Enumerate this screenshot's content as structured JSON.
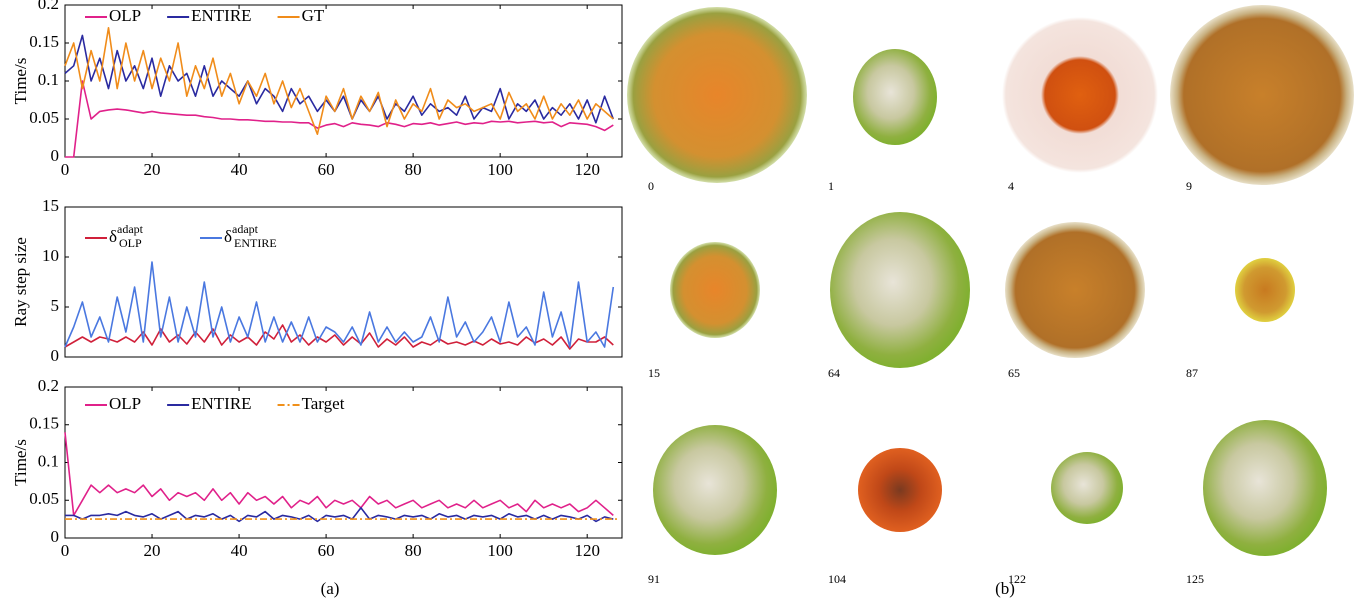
{
  "chart_data": [
    {
      "type": "line",
      "ylabel": "Time/s",
      "xlim": [
        0,
        128
      ],
      "ylim": [
        0,
        0.2
      ],
      "xticks": [
        0,
        20,
        40,
        60,
        80,
        100,
        120
      ],
      "yticks": [
        0,
        0.05,
        0.1,
        0.15,
        0.2
      ],
      "show_xtick_labels": true,
      "x": [
        0,
        2,
        4,
        6,
        8,
        10,
        12,
        14,
        16,
        18,
        20,
        22,
        24,
        26,
        28,
        30,
        32,
        34,
        36,
        38,
        40,
        42,
        44,
        46,
        48,
        50,
        52,
        54,
        56,
        58,
        60,
        62,
        64,
        66,
        68,
        70,
        72,
        74,
        76,
        78,
        80,
        82,
        84,
        86,
        88,
        90,
        92,
        94,
        96,
        98,
        100,
        102,
        104,
        106,
        108,
        110,
        112,
        114,
        116,
        118,
        120,
        122,
        124,
        126
      ],
      "series": [
        {
          "name": "OLP",
          "color": "#e0218a",
          "values": [
            0,
            0,
            0.1,
            0.05,
            0.06,
            0.062,
            0.063,
            0.062,
            0.06,
            0.058,
            0.06,
            0.058,
            0.057,
            0.056,
            0.055,
            0.055,
            0.053,
            0.052,
            0.05,
            0.05,
            0.049,
            0.049,
            0.048,
            0.047,
            0.047,
            0.046,
            0.046,
            0.045,
            0.045,
            0.038,
            0.042,
            0.044,
            0.04,
            0.045,
            0.043,
            0.042,
            0.04,
            0.045,
            0.043,
            0.04,
            0.044,
            0.043,
            0.045,
            0.042,
            0.044,
            0.046,
            0.043,
            0.045,
            0.044,
            0.047,
            0.046,
            0.047,
            0.045,
            0.046,
            0.047,
            0.045,
            0.046,
            0.04,
            0.045,
            0.044,
            0.043,
            0.04,
            0.035,
            0.042
          ]
        },
        {
          "name": "ENTIRE",
          "color": "#2a2aa0",
          "values": [
            0.11,
            0.12,
            0.16,
            0.1,
            0.13,
            0.09,
            0.14,
            0.1,
            0.12,
            0.09,
            0.13,
            0.08,
            0.12,
            0.1,
            0.11,
            0.08,
            0.12,
            0.08,
            0.1,
            0.09,
            0.08,
            0.1,
            0.07,
            0.09,
            0.08,
            0.06,
            0.09,
            0.07,
            0.08,
            0.06,
            0.075,
            0.06,
            0.08,
            0.05,
            0.075,
            0.06,
            0.08,
            0.05,
            0.07,
            0.06,
            0.08,
            0.055,
            0.07,
            0.06,
            0.065,
            0.055,
            0.08,
            0.05,
            0.065,
            0.06,
            0.09,
            0.05,
            0.07,
            0.06,
            0.075,
            0.05,
            0.065,
            0.055,
            0.07,
            0.05,
            0.075,
            0.045,
            0.08,
            0.05
          ]
        },
        {
          "name": "GT",
          "color": "#f08c1a",
          "values": [
            0.12,
            0.15,
            0.09,
            0.14,
            0.1,
            0.17,
            0.09,
            0.15,
            0.1,
            0.14,
            0.09,
            0.13,
            0.1,
            0.15,
            0.08,
            0.12,
            0.09,
            0.13,
            0.08,
            0.11,
            0.07,
            0.1,
            0.08,
            0.11,
            0.07,
            0.1,
            0.065,
            0.09,
            0.06,
            0.03,
            0.08,
            0.06,
            0.09,
            0.05,
            0.08,
            0.06,
            0.085,
            0.04,
            0.075,
            0.05,
            0.07,
            0.06,
            0.09,
            0.05,
            0.075,
            0.065,
            0.07,
            0.06,
            0.065,
            0.07,
            0.05,
            0.085,
            0.06,
            0.07,
            0.05,
            0.08,
            0.05,
            0.07,
            0.055,
            0.075,
            0.05,
            0.07,
            0.06,
            0.05
          ]
        }
      ]
    },
    {
      "type": "line",
      "ylabel": "Ray step size",
      "xlim": [
        0,
        128
      ],
      "ylim": [
        0,
        15
      ],
      "yticks": [
        0,
        5,
        10,
        15
      ],
      "show_xtick_labels": false,
      "x": [
        0,
        2,
        4,
        6,
        8,
        10,
        12,
        14,
        16,
        18,
        20,
        22,
        24,
        26,
        28,
        30,
        32,
        34,
        36,
        38,
        40,
        42,
        44,
        46,
        48,
        50,
        52,
        54,
        56,
        58,
        60,
        62,
        64,
        66,
        68,
        70,
        72,
        74,
        76,
        78,
        80,
        82,
        84,
        86,
        88,
        90,
        92,
        94,
        96,
        98,
        100,
        102,
        104,
        106,
        108,
        110,
        112,
        114,
        116,
        118,
        120,
        122,
        124,
        126
      ],
      "series": [
        {
          "name": "δ",
          "subscript": "OLP",
          "superscript": "adapt",
          "color": "#d0203a",
          "values": [
            1,
            1.5,
            2,
            1.5,
            2,
            1.8,
            1.5,
            2,
            1.5,
            2.5,
            1.2,
            2.8,
            1.5,
            2.2,
            1.3,
            2.5,
            1.5,
            2.8,
            1.2,
            2.2,
            1.5,
            2,
            1.2,
            2.5,
            1.8,
            3.2,
            1.5,
            2.2,
            1.2,
            2,
            1.5,
            2.2,
            1.2,
            2,
            1.3,
            2.4,
            1,
            1.8,
            1.2,
            2,
            1,
            1.5,
            1.2,
            1.8,
            1.3,
            1.5,
            1.2,
            1.6,
            1.2,
            1.8,
            1.3,
            1.5,
            1.2,
            2,
            1.4,
            1.8,
            1.2,
            2,
            0.8,
            1.8,
            1.5,
            1.5,
            2,
            1.2
          ]
        },
        {
          "name": "δ",
          "subscript": "ENTIRE",
          "superscript": "adapt",
          "color": "#4a78e0",
          "values": [
            1,
            3,
            5.5,
            2,
            4,
            1.5,
            6,
            2.5,
            7,
            1.5,
            9.5,
            2,
            6,
            1.5,
            5,
            2,
            7.5,
            2,
            5,
            1.5,
            4,
            2,
            5.5,
            1.5,
            4,
            1.5,
            3.5,
            1.5,
            4,
            1.5,
            3,
            2.5,
            1.5,
            3,
            1.2,
            4.5,
            1.5,
            3,
            1.5,
            2.5,
            1.5,
            2,
            4,
            1.5,
            6,
            2,
            3.5,
            1.5,
            2.5,
            4,
            1.5,
            5.5,
            2,
            3,
            1.2,
            6.5,
            2,
            4.5,
            1,
            7.5,
            1.5,
            2.5,
            1,
            7
          ]
        }
      ]
    },
    {
      "type": "line",
      "ylabel": "Time/s",
      "xlim": [
        0,
        128
      ],
      "ylim": [
        0,
        0.2
      ],
      "xticks": [
        0,
        20,
        40,
        60,
        80,
        100,
        120
      ],
      "yticks": [
        0,
        0.05,
        0.1,
        0.15,
        0.2
      ],
      "show_xtick_labels": true,
      "x": [
        0,
        2,
        4,
        6,
        8,
        10,
        12,
        14,
        16,
        18,
        20,
        22,
        24,
        26,
        28,
        30,
        32,
        34,
        36,
        38,
        40,
        42,
        44,
        46,
        48,
        50,
        52,
        54,
        56,
        58,
        60,
        62,
        64,
        66,
        68,
        70,
        72,
        74,
        76,
        78,
        80,
        82,
        84,
        86,
        88,
        90,
        92,
        94,
        96,
        98,
        100,
        102,
        104,
        106,
        108,
        110,
        112,
        114,
        116,
        118,
        120,
        122,
        124,
        126
      ],
      "series": [
        {
          "name": "OLP",
          "color": "#e0218a",
          "values": [
            0.14,
            0.03,
            0.05,
            0.07,
            0.06,
            0.07,
            0.06,
            0.065,
            0.06,
            0.07,
            0.055,
            0.065,
            0.05,
            0.06,
            0.055,
            0.06,
            0.05,
            0.065,
            0.05,
            0.06,
            0.045,
            0.06,
            0.05,
            0.055,
            0.045,
            0.055,
            0.04,
            0.05,
            0.045,
            0.055,
            0.04,
            0.05,
            0.045,
            0.05,
            0.04,
            0.055,
            0.045,
            0.05,
            0.04,
            0.045,
            0.05,
            0.04,
            0.045,
            0.05,
            0.04,
            0.045,
            0.04,
            0.05,
            0.04,
            0.045,
            0.05,
            0.04,
            0.045,
            0.035,
            0.05,
            0.04,
            0.045,
            0.04,
            0.045,
            0.035,
            0.04,
            0.05,
            0.04,
            0.03
          ]
        },
        {
          "name": "ENTIRE",
          "color": "#2a2aa0",
          "values": [
            0.03,
            0.03,
            0.025,
            0.03,
            0.03,
            0.032,
            0.03,
            0.035,
            0.03,
            0.028,
            0.032,
            0.025,
            0.03,
            0.035,
            0.025,
            0.03,
            0.028,
            0.032,
            0.025,
            0.03,
            0.022,
            0.03,
            0.028,
            0.035,
            0.025,
            0.03,
            0.028,
            0.025,
            0.03,
            0.022,
            0.03,
            0.028,
            0.03,
            0.025,
            0.04,
            0.025,
            0.03,
            0.028,
            0.025,
            0.03,
            0.028,
            0.03,
            0.025,
            0.032,
            0.028,
            0.03,
            0.025,
            0.03,
            0.028,
            0.03,
            0.025,
            0.032,
            0.028,
            0.03,
            0.025,
            0.03,
            0.025,
            0.03,
            0.028,
            0.025,
            0.03,
            0.022,
            0.028,
            0.025
          ]
        },
        {
          "name": "Target",
          "color": "#f0901a",
          "linestyle": "dashdot",
          "x": [
            0,
            127
          ],
          "values": [
            0.025,
            0.025
          ]
        }
      ]
    }
  ],
  "panel_captions": [
    "(a)",
    "(b)"
  ],
  "images": [
    {
      "label": "0"
    },
    {
      "label": "1"
    },
    {
      "label": "4"
    },
    {
      "label": "9"
    },
    {
      "label": "15"
    },
    {
      "label": "64"
    },
    {
      "label": "65"
    },
    {
      "label": "87"
    },
    {
      "label": "91"
    },
    {
      "label": "104"
    },
    {
      "label": "122"
    },
    {
      "label": "125"
    }
  ]
}
